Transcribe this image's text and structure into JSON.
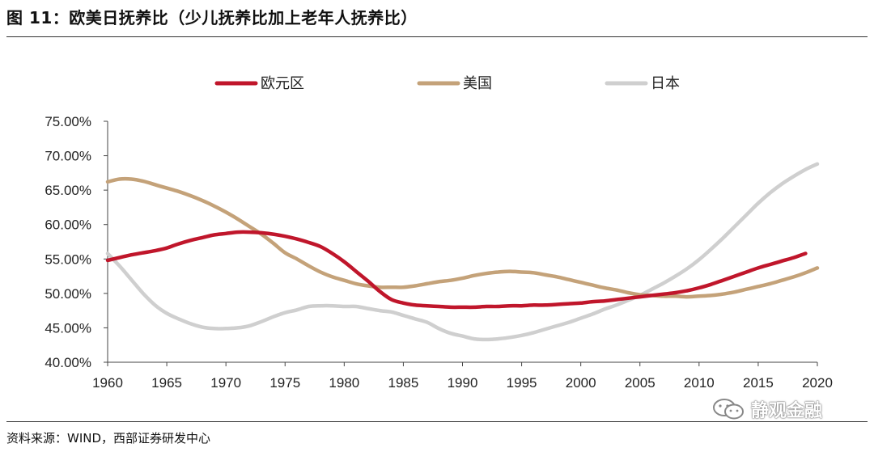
{
  "title": "图 11：欧美日抚养比（少儿抚养比加上老年人抚养比）",
  "source": "资料来源：WIND，西部证券研发中心",
  "watermark": "静观金融",
  "chart_data": {
    "type": "line",
    "x": [
      1960,
      1961,
      1962,
      1963,
      1964,
      1965,
      1966,
      1967,
      1968,
      1969,
      1970,
      1971,
      1972,
      1973,
      1974,
      1975,
      1976,
      1977,
      1978,
      1979,
      1980,
      1981,
      1982,
      1983,
      1984,
      1985,
      1986,
      1987,
      1988,
      1989,
      1990,
      1991,
      1992,
      1993,
      1994,
      1995,
      1996,
      1997,
      1998,
      1999,
      2000,
      2001,
      2002,
      2003,
      2004,
      2005,
      2006,
      2007,
      2008,
      2009,
      2010,
      2011,
      2012,
      2013,
      2014,
      2015,
      2016,
      2017,
      2018,
      2019,
      2020
    ],
    "series": [
      {
        "name": "欧元区",
        "color": "#c0162b",
        "values": [
          54.8,
          55.2,
          55.6,
          55.9,
          56.2,
          56.6,
          57.2,
          57.7,
          58.1,
          58.5,
          58.7,
          58.9,
          58.9,
          58.8,
          58.6,
          58.3,
          57.9,
          57.4,
          56.8,
          55.8,
          54.6,
          53.2,
          51.8,
          50.3,
          49.1,
          48.6,
          48.3,
          48.2,
          48.1,
          48.0,
          48.0,
          48.0,
          48.1,
          48.1,
          48.2,
          48.2,
          48.3,
          48.3,
          48.4,
          48.5,
          48.6,
          48.8,
          48.9,
          49.1,
          49.3,
          49.5,
          49.7,
          49.9,
          50.1,
          50.4,
          50.8,
          51.3,
          51.9,
          52.5,
          53.1,
          53.7,
          54.2,
          54.7,
          55.2,
          55.8,
          null
        ]
      },
      {
        "name": "美国",
        "color": "#c4a279",
        "values": [
          66.2,
          66.6,
          66.6,
          66.3,
          65.8,
          65.3,
          64.8,
          64.2,
          63.5,
          62.7,
          61.8,
          60.8,
          59.7,
          58.6,
          57.3,
          55.9,
          55.0,
          54.0,
          53.1,
          52.4,
          51.9,
          51.4,
          51.1,
          50.9,
          50.9,
          50.9,
          51.1,
          51.4,
          51.7,
          51.9,
          52.2,
          52.6,
          52.9,
          53.1,
          53.2,
          53.1,
          53.0,
          52.7,
          52.4,
          52.0,
          51.6,
          51.2,
          50.8,
          50.5,
          50.1,
          49.8,
          49.7,
          49.6,
          49.6,
          49.5,
          49.6,
          49.7,
          49.9,
          50.2,
          50.6,
          51.0,
          51.4,
          51.9,
          52.4,
          53.0,
          53.7
        ]
      },
      {
        "name": "日本",
        "color": "#cfcfcf",
        "values": [
          55.8,
          54.0,
          52.0,
          50.0,
          48.3,
          47.1,
          46.3,
          45.6,
          45.1,
          44.9,
          44.9,
          45.0,
          45.3,
          45.9,
          46.6,
          47.2,
          47.6,
          48.1,
          48.2,
          48.2,
          48.1,
          48.1,
          47.8,
          47.5,
          47.3,
          46.8,
          46.3,
          45.8,
          44.9,
          44.2,
          43.8,
          43.4,
          43.3,
          43.4,
          43.6,
          43.9,
          44.3,
          44.8,
          45.3,
          45.8,
          46.4,
          47.0,
          47.7,
          48.3,
          49.0,
          49.7,
          50.6,
          51.5,
          52.5,
          53.6,
          54.9,
          56.4,
          58.0,
          59.7,
          61.4,
          63.1,
          64.6,
          65.9,
          67.0,
          68.0,
          68.8
        ]
      }
    ],
    "xticks": [
      1960,
      1965,
      1970,
      1975,
      1980,
      1985,
      1990,
      1995,
      2000,
      2005,
      2010,
      2015,
      2020
    ],
    "yticks": [
      40,
      45,
      50,
      55,
      60,
      65,
      70,
      75
    ],
    "ytick_labels": [
      "40.00%",
      "45.00%",
      "50.00%",
      "55.00%",
      "60.00%",
      "65.00%",
      "70.00%",
      "75.00%"
    ],
    "xlim": [
      1960,
      2020
    ],
    "ylim": [
      40,
      75
    ],
    "grid": false,
    "legend": "top"
  }
}
